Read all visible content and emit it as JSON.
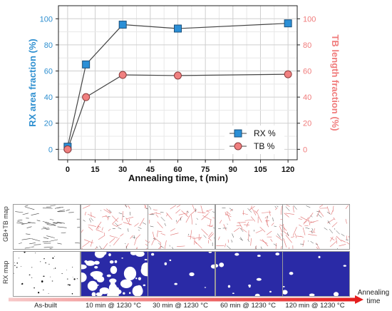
{
  "chart_data": {
    "type": "line",
    "xlabel": "Annealing time, t (min)",
    "ylabel_left": "RX area fraction (%)",
    "ylabel_right": "TB length fraction (%)",
    "xlim": [
      -5,
      125
    ],
    "ylim": [
      -8,
      110
    ],
    "x_ticks": [
      0,
      15,
      30,
      45,
      60,
      75,
      90,
      105,
      120
    ],
    "y_ticks": [
      0,
      20,
      40,
      60,
      80,
      100
    ],
    "grid": true,
    "legend_position": "bottom-right",
    "series": [
      {
        "name": "RX %",
        "axis": "left",
        "marker": "square",
        "color": "#2b8fd6",
        "x": [
          0,
          10,
          30,
          60,
          120
        ],
        "y": [
          2,
          65,
          95.5,
          92.5,
          96.5
        ]
      },
      {
        "name": "TB %",
        "axis": "right",
        "marker": "circle",
        "color": "#f08080",
        "x": [
          0,
          10,
          30,
          60,
          120
        ],
        "y": [
          0,
          40,
          57,
          56.5,
          57.5
        ]
      }
    ],
    "colors": {
      "left_axis": "#2e8fd0",
      "right_axis": "#f07c7c",
      "line": "#444444"
    }
  },
  "micrographs": {
    "rows": [
      "GB+TB map",
      "RX map"
    ],
    "columns": [
      "As-built",
      "10 min @ 1230 °C",
      "30 min @ 1230 °C",
      "60 min @ 1230 °C",
      "120 min @ 1230 °C"
    ],
    "rx_fraction_shown": [
      0.02,
      0.65,
      0.955,
      0.925,
      0.965
    ],
    "arrow_label": "Annealing time",
    "colors": {
      "rx": "#2a2aa6",
      "unrx": "#ffffff",
      "gb": "#444444",
      "tb": "#e07070"
    }
  }
}
